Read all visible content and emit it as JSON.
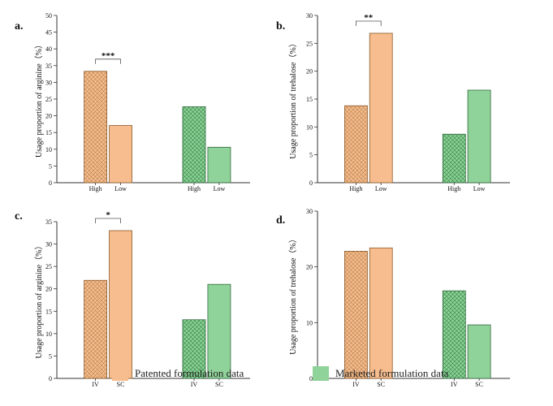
{
  "colors": {
    "patented_fill": "#f7bd8e",
    "patented_hatch": "#c08a58",
    "patented_stroke": "#8a5a2a",
    "marketed_fill": "#90d39a",
    "marketed_hatch": "#3d8e4e",
    "marketed_stroke": "#2f6a3a",
    "axis": "#333333"
  },
  "legend": {
    "patented": "Patented formulation data",
    "marketed": "Marketed formulation data"
  },
  "chart_data": [
    {
      "id": "a",
      "panel_label": "a.",
      "type": "bar",
      "ylabel": "Usage proportion of arginine（%）",
      "ylim": [
        0,
        50
      ],
      "ytick_step": 5,
      "yticks": [
        "0",
        "5",
        "10",
        "15",
        "20",
        "25",
        "30",
        "35",
        "40",
        "45",
        "50"
      ],
      "bars": [
        {
          "group": "patented",
          "category": "High",
          "value": 33.3,
          "hatched": true
        },
        {
          "group": "patented",
          "category": "Low",
          "value": 17.1,
          "hatched": false
        },
        {
          "group": "marketed",
          "category": "High",
          "value": 22.7,
          "hatched": true
        },
        {
          "group": "marketed",
          "category": "Low",
          "value": 10.6,
          "hatched": false
        }
      ],
      "significance": {
        "text": "***",
        "between": [
          0,
          1
        ]
      }
    },
    {
      "id": "b",
      "panel_label": "b.",
      "type": "bar",
      "ylabel": "Usage proportion of trehalose（%）",
      "ylim": [
        0,
        30
      ],
      "ytick_step": 5,
      "yticks": [
        "0",
        "5",
        "10",
        "15",
        "20",
        "25",
        "30"
      ],
      "bars": [
        {
          "group": "patented",
          "category": "High",
          "value": 13.8,
          "hatched": true
        },
        {
          "group": "patented",
          "category": "Low",
          "value": 26.8,
          "hatched": false
        },
        {
          "group": "marketed",
          "category": "High",
          "value": 8.7,
          "hatched": true
        },
        {
          "group": "marketed",
          "category": "Low",
          "value": 16.6,
          "hatched": false
        }
      ],
      "significance": {
        "text": "**",
        "between": [
          0,
          1
        ]
      }
    },
    {
      "id": "c",
      "panel_label": "c.",
      "type": "bar",
      "ylabel": "Usage proportion of arginine（%）",
      "ylim": [
        0,
        35
      ],
      "ytick_step": 5,
      "yticks": [
        "0",
        "5",
        "10",
        "15",
        "20",
        "25",
        "30",
        "35"
      ],
      "bars": [
        {
          "group": "patented",
          "category": "IV",
          "value": 21.9,
          "hatched": true
        },
        {
          "group": "patented",
          "category": "SC",
          "value": 33.0,
          "hatched": false
        },
        {
          "group": "marketed",
          "category": "IV",
          "value": 13.1,
          "hatched": true
        },
        {
          "group": "marketed",
          "category": "SC",
          "value": 21.0,
          "hatched": false
        }
      ],
      "significance": {
        "text": "*",
        "between": [
          0,
          1
        ]
      }
    },
    {
      "id": "d",
      "panel_label": "d.",
      "type": "bar",
      "ylabel": "Usage proportion of trehalose（%）",
      "ylim": [
        0,
        30
      ],
      "ytick_step": 10,
      "yticks": [
        "0",
        "10",
        "20",
        "30"
      ],
      "bars": [
        {
          "group": "patented",
          "category": "IV",
          "value": 22.8,
          "hatched": true
        },
        {
          "group": "patented",
          "category": "SC",
          "value": 23.4,
          "hatched": false
        },
        {
          "group": "marketed",
          "category": "IV",
          "value": 15.7,
          "hatched": true
        },
        {
          "group": "marketed",
          "category": "SC",
          "value": 9.6,
          "hatched": false
        }
      ],
      "significance": null
    }
  ]
}
